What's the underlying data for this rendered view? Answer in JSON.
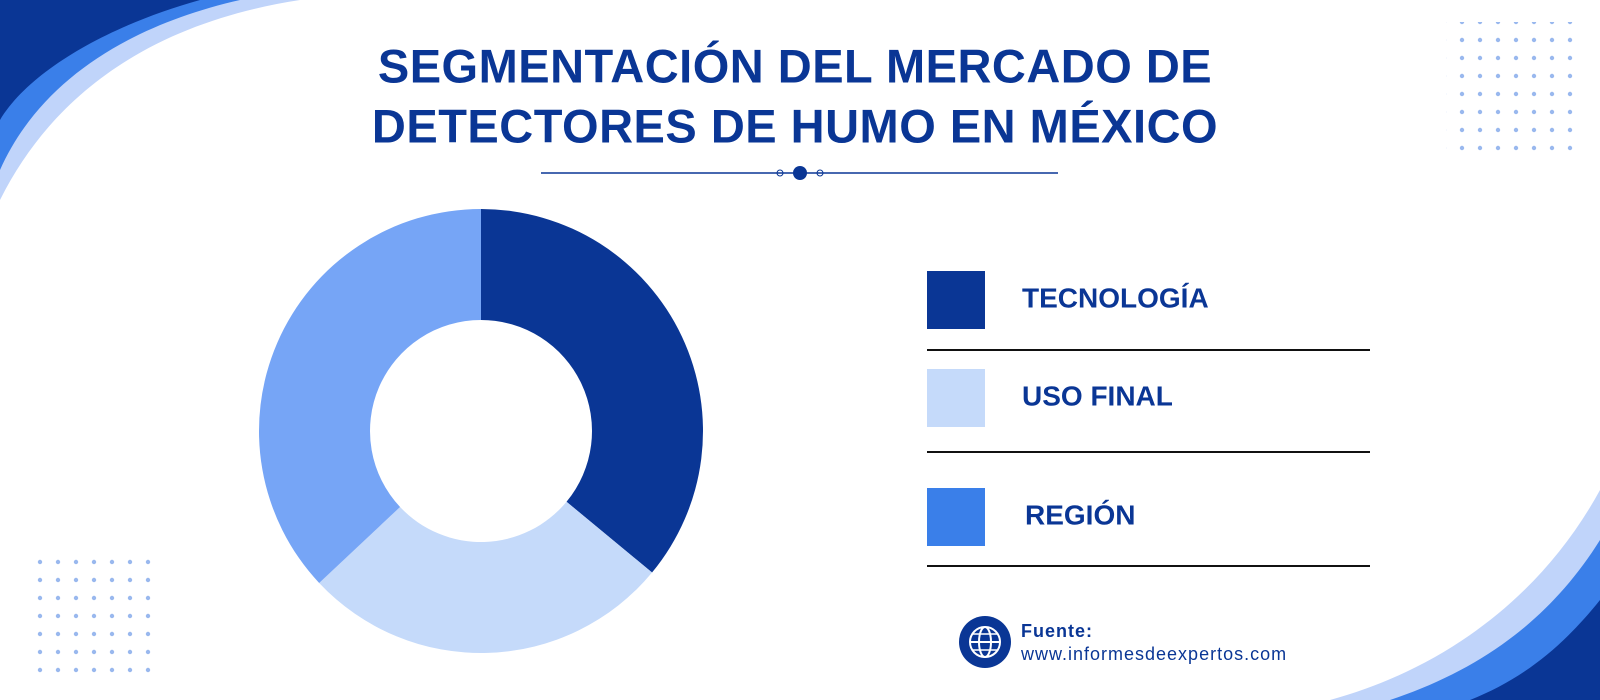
{
  "chart_data": {
    "type": "donut",
    "title": [
      "SEGMENTACIÓN DEL MERCADO DE",
      "DETECTORES DE HUMO EN MÉXICO"
    ],
    "categories": [
      "TECNOLOGÍA",
      "USO FINAL",
      "REGIÓN"
    ],
    "values": [
      36,
      27,
      37
    ],
    "colors": [
      "#0a3695",
      "#c5dafa",
      "#76a5f6"
    ],
    "legend_colors": [
      "#0a3695",
      "#c5dafa",
      "#3a7fe9"
    ],
    "source_label": "Fuente:",
    "source_url": "www.informesdeexpertos.com"
  }
}
